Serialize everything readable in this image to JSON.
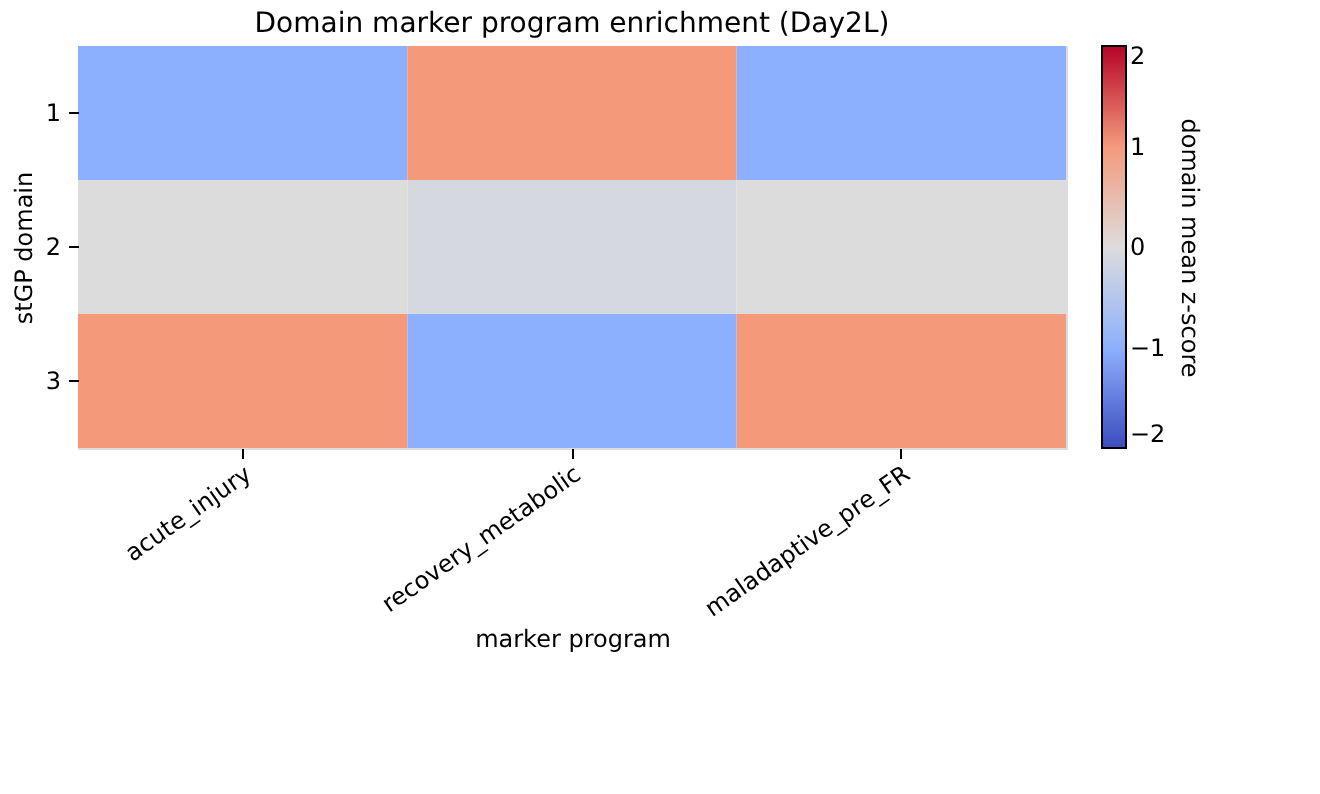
{
  "chart_data": {
    "type": "heatmap",
    "title": "Domain marker program enrichment (Day2L)",
    "xlabel": "marker program",
    "ylabel": "stGP domain",
    "clabel": "domain mean z-score",
    "categories": [
      "acute_injury",
      "recovery_metabolic",
      "maladaptive_pre_FR"
    ],
    "y_categories": [
      "1",
      "2",
      "3"
    ],
    "cells": [
      [
        -1.0,
        1.0,
        -1.0
      ],
      [
        0.0,
        -0.1,
        0.0
      ],
      [
        1.0,
        -1.0,
        1.0
      ]
    ],
    "clim": [
      -2,
      2
    ],
    "cticks": [
      -2,
      -1,
      0,
      1,
      2
    ]
  }
}
